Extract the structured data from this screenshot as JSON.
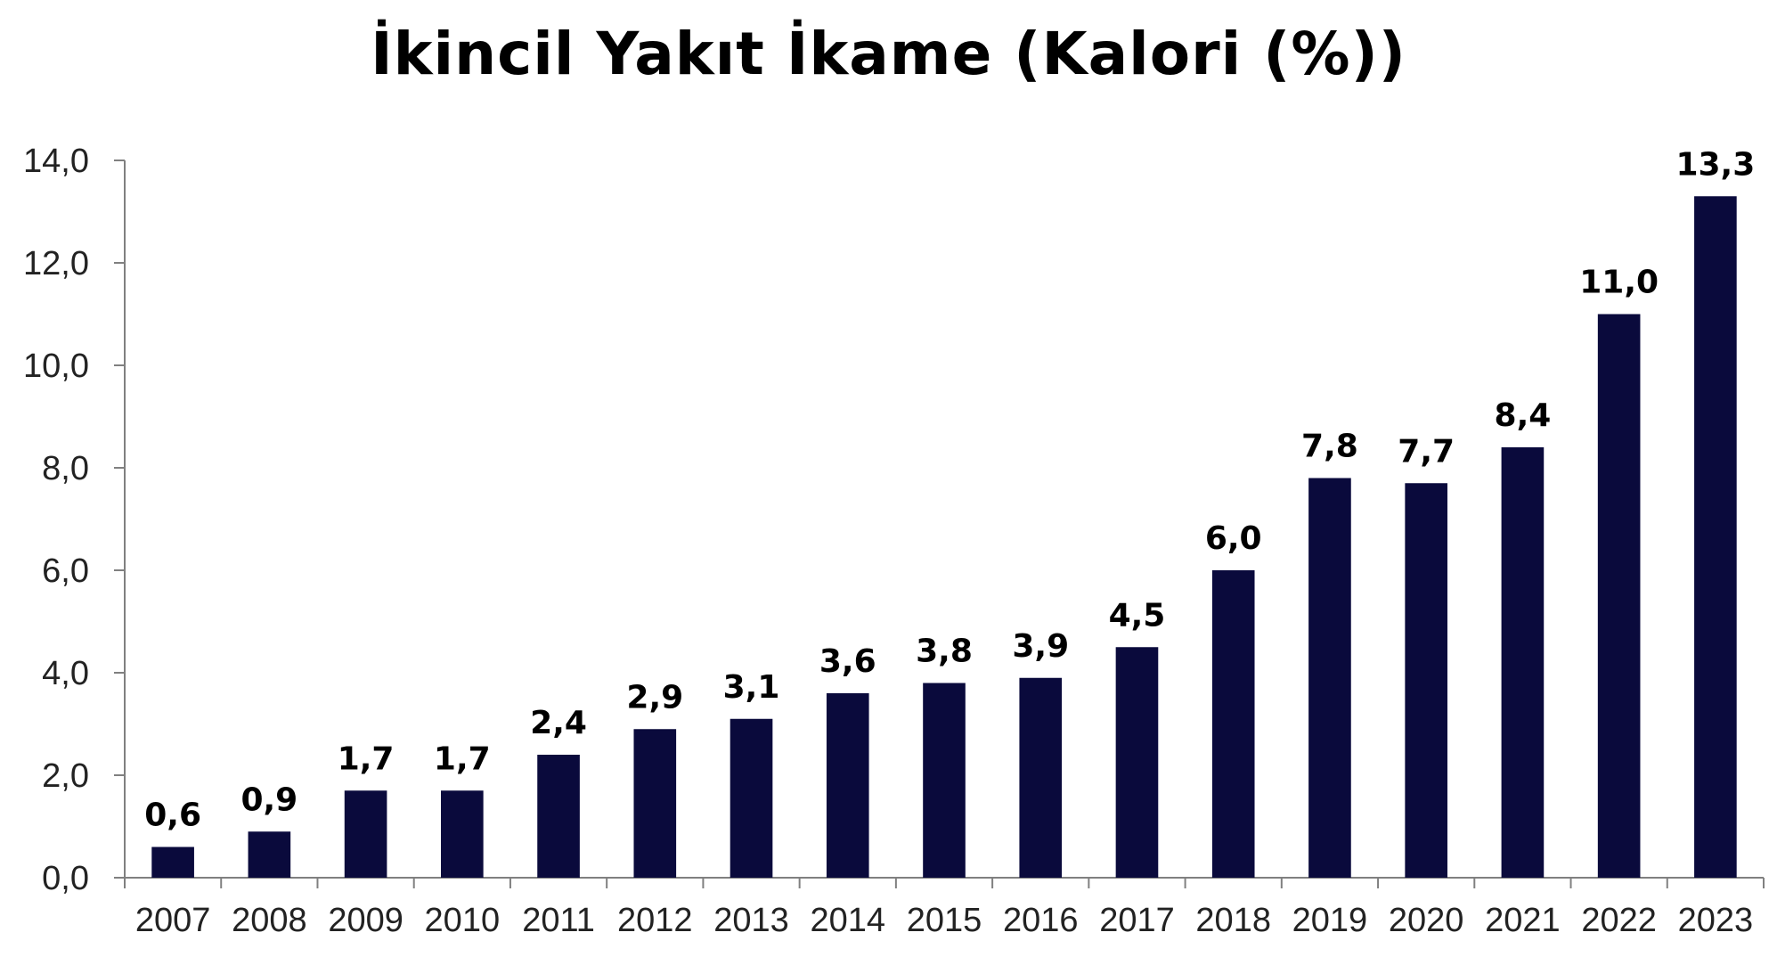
{
  "chart_data": {
    "type": "bar",
    "title": "İkincil Yakıt İkame (Kalori (%))",
    "xlabel": "",
    "ylabel": "",
    "categories": [
      "2007",
      "2008",
      "2009",
      "2010",
      "2011",
      "2012",
      "2013",
      "2014",
      "2015",
      "2016",
      "2017",
      "2018",
      "2019",
      "2020",
      "2021",
      "2022",
      "2023"
    ],
    "values": [
      0.6,
      0.9,
      1.7,
      1.7,
      2.4,
      2.9,
      3.1,
      3.6,
      3.8,
      3.9,
      4.5,
      6.0,
      7.8,
      7.7,
      8.4,
      11.0,
      13.3
    ],
    "value_labels": [
      "0,6",
      "0,9",
      "1,7",
      "1,7",
      "2,4",
      "2,9",
      "3,1",
      "3,6",
      "3,8",
      "3,9",
      "4,5",
      "6,0",
      "7,8",
      "7,7",
      "8,4",
      "11,0",
      "13,3"
    ],
    "ylim": [
      0,
      14
    ],
    "yticks": [
      0,
      2,
      4,
      6,
      8,
      10,
      12,
      14
    ],
    "ytick_labels": [
      "0,0",
      "2,0",
      "4,0",
      "6,0",
      "8,0",
      "10,0",
      "12,0",
      "14,0"
    ],
    "bar_color": "#0a0a3c",
    "grid": false,
    "legend": "none"
  }
}
